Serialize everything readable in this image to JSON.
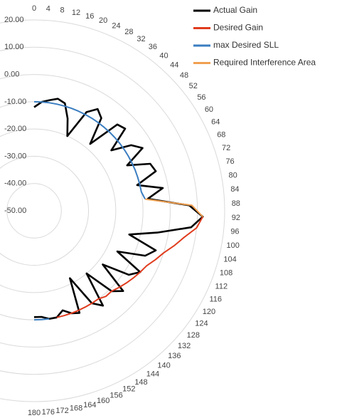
{
  "chart_data": {
    "type": "radar",
    "categories": [
      "0",
      "4",
      "8",
      "12",
      "16",
      "20",
      "24",
      "28",
      "32",
      "36",
      "40",
      "44",
      "48",
      "52",
      "56",
      "60",
      "64",
      "68",
      "72",
      "76",
      "80",
      "84",
      "88",
      "92",
      "96",
      "100",
      "104",
      "108",
      "112",
      "116",
      "120",
      "124",
      "128",
      "132",
      "136",
      "140",
      "144",
      "148",
      "152",
      "156",
      "160",
      "164",
      "168",
      "172",
      "176",
      "180"
    ],
    "ylim": [
      -50,
      20
    ],
    "yticks": [
      {
        "value": -50,
        "label": "-50.00"
      },
      {
        "value": -40,
        "label": "-40.00"
      },
      {
        "value": -30,
        "label": "-30.00"
      },
      {
        "value": -20,
        "label": "-20.00"
      },
      {
        "value": -10,
        "label": "-10.00"
      },
      {
        "value": 0,
        "label": "0.00"
      },
      {
        "value": 10,
        "label": "10.00"
      },
      {
        "value": 20,
        "label": "20.00"
      }
    ],
    "grid": true,
    "legend": "top-right",
    "series": [
      {
        "name": "Actual Gain",
        "color": "#000000",
        "values": [
          -12,
          -10,
          -9,
          -8,
          -9,
          -14,
          -20,
          -9,
          -6,
          -8,
          -18,
          -6,
          -5,
          -14,
          -7,
          -4,
          -12,
          -4,
          -3,
          -11,
          -2,
          -8,
          7,
          12,
          8,
          -4,
          -14,
          -3,
          -6,
          -16,
          -5,
          -8,
          -18,
          -6,
          -9,
          -20,
          -7,
          -10,
          -22,
          -9,
          -10,
          -12,
          -10,
          -10,
          -11,
          -11
        ]
      },
      {
        "name": "Desired Gain",
        "color": "#e03c1e",
        "values": [
          null,
          null,
          null,
          null,
          null,
          null,
          null,
          null,
          null,
          null,
          null,
          null,
          null,
          null,
          null,
          null,
          null,
          null,
          null,
          null,
          null,
          null,
          null,
          12,
          10,
          6,
          3,
          0,
          -2,
          -4,
          -5,
          -6,
          -7,
          -8,
          -9,
          -9,
          -10,
          -10,
          -10,
          -10,
          -10,
          -10,
          -10,
          null,
          null,
          null
        ]
      },
      {
        "name": "max Desired SLL",
        "color": "#3a7dc0",
        "values": [
          -10,
          -10,
          -10,
          -10,
          -10,
          -10,
          -10,
          -10,
          -10,
          -10,
          -10,
          -10,
          -10,
          -10,
          -10,
          -10,
          -10,
          -10,
          -10,
          -10,
          -10,
          -9,
          null,
          null,
          null,
          null,
          null,
          null,
          null,
          null,
          null,
          null,
          null,
          null,
          null,
          null,
          null,
          null,
          null,
          null,
          null,
          null,
          null,
          -10,
          -10,
          -10
        ]
      },
      {
        "name": "Required Interference Area",
        "color": "#f0a050",
        "values": [
          null,
          null,
          null,
          null,
          null,
          null,
          null,
          null,
          null,
          null,
          null,
          null,
          null,
          null,
          null,
          null,
          null,
          null,
          null,
          null,
          null,
          -9,
          8,
          12,
          null,
          null,
          null,
          null,
          null,
          null,
          null,
          null,
          null,
          null,
          null,
          null,
          null,
          null,
          null,
          null,
          null,
          null,
          null,
          null,
          null,
          null
        ]
      }
    ]
  }
}
